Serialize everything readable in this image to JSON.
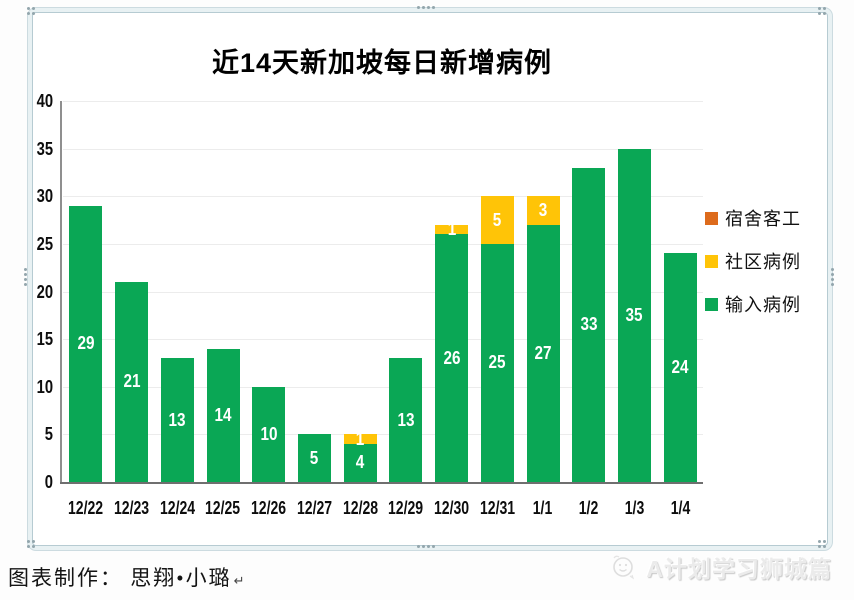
{
  "selection_frame": {
    "handle_icon": "grip-dots",
    "handles": [
      "top-left",
      "top",
      "top-right",
      "left",
      "right",
      "bottom-left",
      "bottom",
      "bottom-right"
    ]
  },
  "footer": {
    "credit": "图表制作： 思翔•小璐",
    "return_mark": "↵"
  },
  "watermark": {
    "icon": "smiley-face-icon",
    "text": "A计划学习狮城篇"
  },
  "colors": {
    "green": "#0AA755",
    "yellow": "#FFC407",
    "orange": "#DD6B1C",
    "grid": "#ECECEC",
    "axis": "#8F8F8F",
    "baseline": "#6F6F6F",
    "bar_label": "#FFFFFF",
    "frame_band": "#E8F1F3",
    "frame_line": "#B6CBD2",
    "watermark_gray": "#EBEBEB"
  },
  "chart_data": {
    "type": "bar",
    "stacked": true,
    "title": "近14天新加坡每日新增病例",
    "categories": [
      "12/22",
      "12/23",
      "12/24",
      "12/25",
      "12/26",
      "12/27",
      "12/28",
      "12/29",
      "12/30",
      "12/31",
      "1/1",
      "1/2",
      "1/3",
      "1/4"
    ],
    "series": [
      {
        "name": "输入病例",
        "color": "#0AA755",
        "values": [
          29,
          21,
          13,
          14,
          10,
          5,
          4,
          13,
          26,
          25,
          27,
          33,
          35,
          24
        ]
      },
      {
        "name": "社区病例",
        "color": "#FFC407",
        "values": [
          0,
          0,
          0,
          0,
          0,
          0,
          1,
          0,
          1,
          5,
          3,
          0,
          0,
          0
        ]
      },
      {
        "name": "宿舍客工",
        "color": "#DD6B1C",
        "values": [
          0,
          0,
          0,
          0,
          0,
          0,
          0,
          0,
          0,
          0,
          0,
          0,
          0,
          0
        ]
      }
    ],
    "totals": [
      29,
      21,
      13,
      14,
      10,
      5,
      5,
      13,
      27,
      30,
      30,
      33,
      35,
      24
    ],
    "ylim": [
      0,
      40
    ],
    "ytick_step": 5,
    "yticks": [
      0,
      5,
      10,
      15,
      20,
      25,
      30,
      35,
      40
    ],
    "grid": true,
    "legend_position": "right",
    "legend_order": [
      "宿舍客工",
      "社区病例",
      "输入病例"
    ],
    "bar_labels_shown": true
  }
}
